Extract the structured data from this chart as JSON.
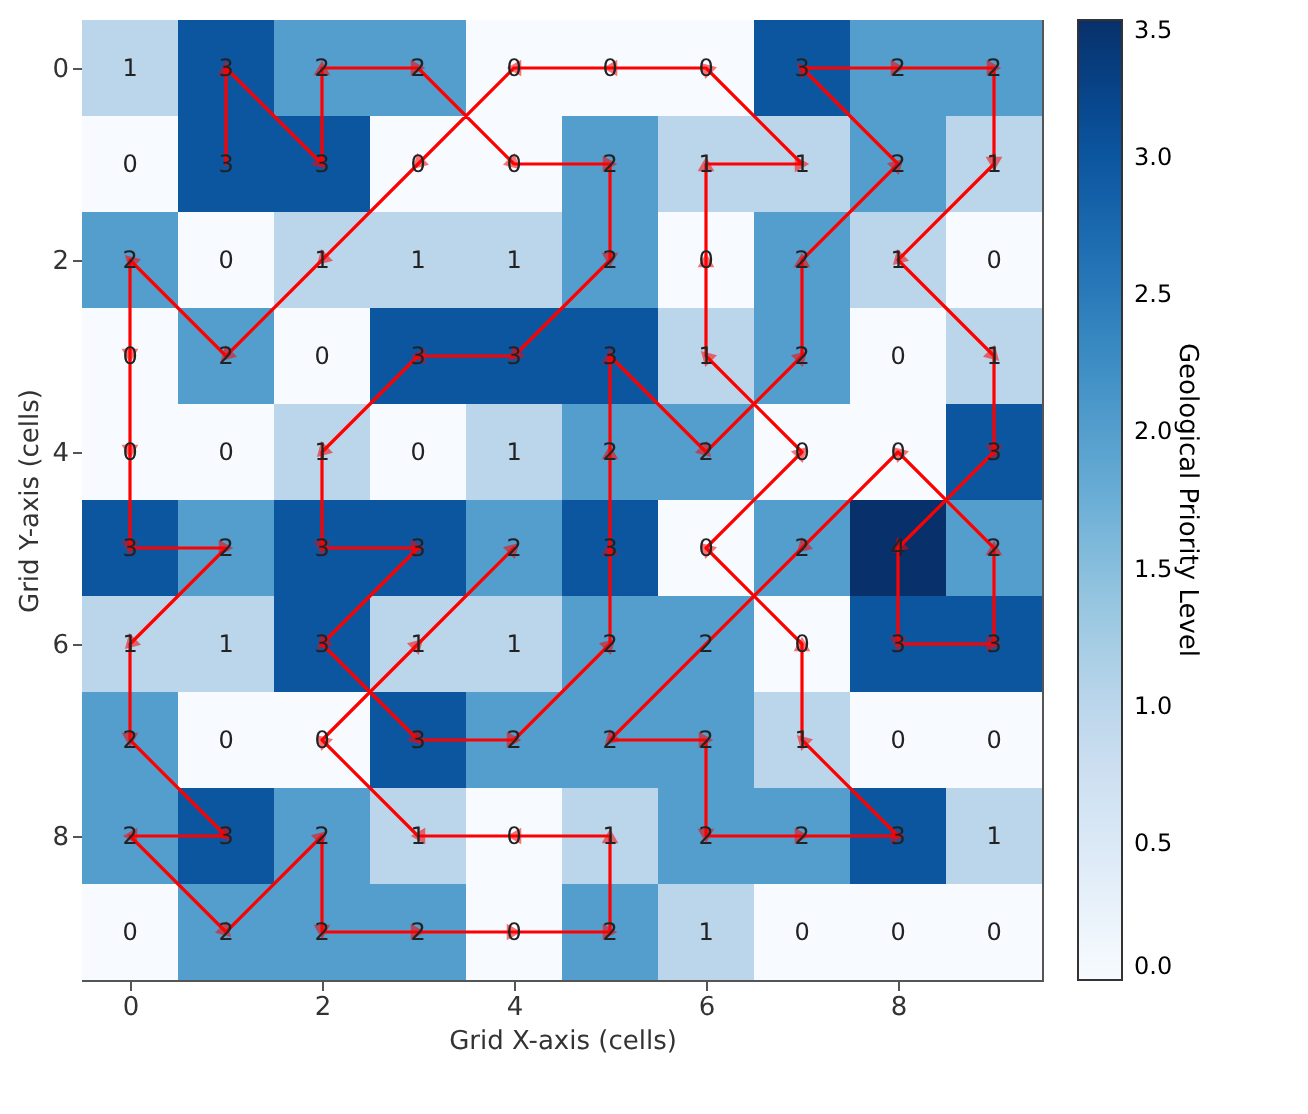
{
  "chart_data": {
    "type": "heatmap",
    "xlabel": "Grid X-axis (cells)",
    "ylabel": "Grid Y-axis (cells)",
    "clabel": "Geological Priority Level",
    "x": [
      0,
      1,
      2,
      3,
      4,
      5,
      6,
      7,
      8,
      9
    ],
    "xlim": [
      -0.5,
      9.5
    ],
    "ylim": [
      9.5,
      -0.5
    ],
    "xticks": [
      0,
      2,
      4,
      6,
      8
    ],
    "yticks": [
      0,
      2,
      4,
      6,
      8
    ],
    "cells": [
      [
        1,
        3,
        2,
        2,
        0,
        0,
        0,
        3,
        2,
        2
      ],
      [
        0,
        3,
        3,
        0,
        0,
        2,
        1,
        1,
        2,
        1
      ],
      [
        2,
        0,
        1,
        1,
        1,
        2,
        0,
        2,
        1,
        0
      ],
      [
        0,
        2,
        0,
        3,
        3,
        3,
        1,
        2,
        0,
        1
      ],
      [
        0,
        0,
        1,
        0,
        1,
        2,
        2,
        0,
        0,
        3
      ],
      [
        3,
        2,
        3,
        3,
        2,
        3,
        0,
        2,
        4,
        2
      ],
      [
        1,
        1,
        3,
        1,
        1,
        2,
        2,
        0,
        3,
        3
      ],
      [
        2,
        0,
        0,
        3,
        2,
        2,
        2,
        1,
        0,
        0
      ],
      [
        2,
        3,
        2,
        1,
        0,
        1,
        2,
        2,
        3,
        1
      ],
      [
        0,
        2,
        2,
        2,
        0,
        2,
        1,
        0,
        0,
        0
      ]
    ],
    "data_labels": true,
    "clim": [
      0,
      3.5
    ],
    "cticks": [
      {
        "value": 0,
        "label": "0.0"
      },
      0.5,
      {
        "value": 1,
        "label": "1.0"
      },
      1.5,
      {
        "value": 2,
        "label": "2.0"
      },
      2.5,
      {
        "value": 3,
        "label": "3.0"
      },
      3.5
    ],
    "marker": "triangle",
    "series": [
      {
        "type": "line",
        "color": "#ff0000",
        "data_labels": false,
        "x": [
          1,
          1,
          2,
          2,
          3,
          4,
          5,
          5,
          4,
          3,
          2,
          2,
          3,
          2,
          3,
          4,
          5,
          5,
          5,
          5,
          6,
          7,
          7,
          8,
          7,
          8,
          9,
          9,
          8,
          9,
          9,
          8,
          8,
          9,
          9,
          8,
          7,
          5,
          6,
          6,
          7,
          8,
          7,
          7,
          6,
          7,
          6,
          6,
          6,
          7,
          6,
          5,
          4,
          3,
          2,
          1,
          0,
          0,
          0,
          0,
          1,
          0,
          0,
          1,
          0,
          1,
          2,
          2,
          3,
          4,
          5,
          5,
          4,
          3,
          2,
          3,
          4
        ],
        "values": [
          1,
          0,
          1,
          0,
          0,
          1,
          1,
          2,
          3,
          3,
          4,
          5,
          5,
          6,
          7,
          7,
          6,
          5,
          4,
          3,
          4,
          3,
          2,
          1,
          0,
          0,
          0,
          1,
          2,
          3,
          4,
          5,
          6,
          6,
          5,
          4,
          5,
          7,
          7,
          8,
          8,
          8,
          7,
          6,
          5,
          4,
          3,
          2,
          1,
          1,
          0,
          0,
          0,
          1,
          2,
          3,
          2,
          3,
          4,
          5,
          5,
          6,
          7,
          8,
          8,
          9,
          8,
          9,
          9,
          9,
          9,
          8,
          8,
          8,
          7,
          6,
          5
        ]
      }
    ]
  }
}
